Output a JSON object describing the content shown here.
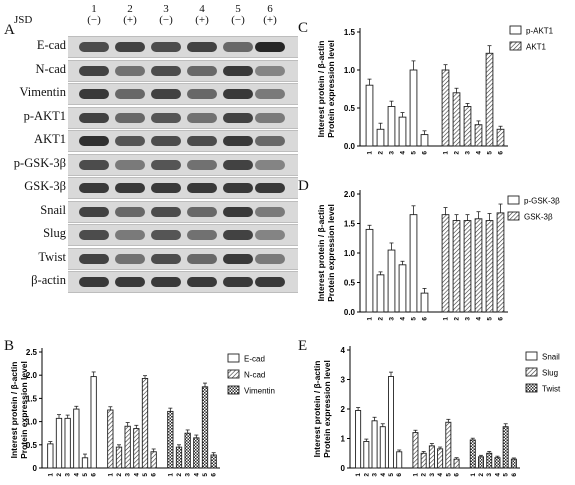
{
  "panels": {
    "A": "A",
    "B": "B",
    "C": "C",
    "D": "D",
    "E": "E"
  },
  "blot": {
    "header_label": "JSD",
    "lanes": [
      {
        "num": "1",
        "sign": "(−)"
      },
      {
        "num": "2",
        "sign": "(+)"
      },
      {
        "num": "3",
        "sign": "(−)"
      },
      {
        "num": "4",
        "sign": "(+)"
      },
      {
        "num": "5",
        "sign": "(−)"
      },
      {
        "num": "6",
        "sign": "(+)"
      }
    ],
    "rows": [
      {
        "label": "E-cad",
        "intensity": [
          0.75,
          0.8,
          0.75,
          0.8,
          0.6,
          0.95
        ]
      },
      {
        "label": "N-cad",
        "intensity": [
          0.8,
          0.55,
          0.75,
          0.6,
          0.85,
          0.45
        ]
      },
      {
        "label": "Vimentin",
        "intensity": [
          0.85,
          0.6,
          0.8,
          0.6,
          0.85,
          0.5
        ]
      },
      {
        "label": "p-AKT1",
        "intensity": [
          0.8,
          0.6,
          0.7,
          0.55,
          0.8,
          0.5
        ]
      },
      {
        "label": "AKT1",
        "intensity": [
          0.9,
          0.7,
          0.75,
          0.75,
          0.85,
          0.6
        ]
      },
      {
        "label": "p-GSK-3β",
        "intensity": [
          0.75,
          0.5,
          0.7,
          0.55,
          0.8,
          0.45
        ]
      },
      {
        "label": "GSK-3β",
        "intensity": [
          0.85,
          0.85,
          0.85,
          0.85,
          0.85,
          0.85
        ]
      },
      {
        "label": "Snail",
        "intensity": [
          0.8,
          0.6,
          0.75,
          0.6,
          0.85,
          0.5
        ]
      },
      {
        "label": "Slug",
        "intensity": [
          0.75,
          0.5,
          0.7,
          0.55,
          0.8,
          0.45
        ]
      },
      {
        "label": "Twist",
        "intensity": [
          0.8,
          0.55,
          0.75,
          0.6,
          0.85,
          0.5
        ]
      },
      {
        "label": "β-actin",
        "intensity": [
          0.85,
          0.85,
          0.85,
          0.85,
          0.85,
          0.85
        ]
      }
    ]
  },
  "chart_data": [
    {
      "panel": "B",
      "type": "bar",
      "ylabel": "Interest protein / β-actin\nProtein expression level",
      "ylim": [
        0,
        2.5
      ],
      "yticks": [
        0,
        0.5,
        1,
        1.5,
        2,
        2.5
      ],
      "ytick_labels": [
        "0",
        "0.5",
        "1.0",
        "1.5",
        "2.0",
        "2.5"
      ],
      "categories": [
        "1",
        "2",
        "3",
        "4",
        "5",
        "6"
      ],
      "legend_position": "right",
      "series": [
        {
          "name": "E-cad",
          "values": [
            0.52,
            1.07,
            1.07,
            1.27,
            0.22,
            1.97
          ],
          "errors": [
            0.05,
            0.08,
            0.07,
            0.06,
            0.08,
            0.1
          ]
        },
        {
          "name": "N-cad",
          "values": [
            1.25,
            0.45,
            0.9,
            0.85,
            1.93,
            0.35
          ],
          "errors": [
            0.07,
            0.05,
            0.08,
            0.07,
            0.06,
            0.06
          ]
        },
        {
          "name": "Vimentin",
          "values": [
            1.22,
            0.45,
            0.75,
            0.65,
            1.75,
            0.28
          ],
          "errors": [
            0.07,
            0.05,
            0.07,
            0.06,
            0.08,
            0.05
          ]
        }
      ]
    },
    {
      "panel": "C",
      "type": "bar",
      "ylabel": "Interest protein / β-actin\nProtein expression level",
      "ylim": [
        0,
        1.5
      ],
      "yticks": [
        0,
        0.5,
        1,
        1.5
      ],
      "ytick_labels": [
        "0.0",
        "0.5",
        "1.0",
        "1.5"
      ],
      "categories": [
        "1",
        "2",
        "3",
        "4",
        "5",
        "6"
      ],
      "legend_position": "top-right",
      "series": [
        {
          "name": "p-AKT1",
          "values": [
            0.8,
            0.22,
            0.52,
            0.38,
            1.0,
            0.15
          ],
          "errors": [
            0.08,
            0.08,
            0.07,
            0.06,
            0.12,
            0.05
          ]
        },
        {
          "name": "AKT1",
          "values": [
            1.0,
            0.7,
            0.52,
            0.28,
            1.22,
            0.22
          ],
          "errors": [
            0.07,
            0.06,
            0.04,
            0.05,
            0.1,
            0.04
          ]
        }
      ]
    },
    {
      "panel": "D",
      "type": "bar",
      "ylabel": "Interest protein / β-actin\nProtein expression level",
      "ylim": [
        0,
        2.0
      ],
      "yticks": [
        0,
        0.5,
        1,
        1.5,
        2
      ],
      "ytick_labels": [
        "0.0",
        "0.5",
        "1.0",
        "1.5",
        "2.0"
      ],
      "categories": [
        "1",
        "2",
        "3",
        "4",
        "5",
        "6"
      ],
      "legend_position": "top-right",
      "series": [
        {
          "name": "p-GSK-3β",
          "values": [
            1.4,
            0.63,
            1.05,
            0.8,
            1.65,
            0.32
          ],
          "errors": [
            0.07,
            0.05,
            0.12,
            0.06,
            0.15,
            0.08
          ]
        },
        {
          "name": "GSK-3β",
          "values": [
            1.65,
            1.55,
            1.55,
            1.58,
            1.55,
            1.68
          ],
          "errors": [
            0.12,
            0.1,
            0.1,
            0.12,
            0.12,
            0.15
          ]
        }
      ]
    },
    {
      "panel": "E",
      "type": "bar",
      "ylabel": "Interest protein / β-actin\nProtein expression level",
      "ylim": [
        0,
        4
      ],
      "yticks": [
        0,
        1,
        2,
        3,
        4
      ],
      "ytick_labels": [
        "0",
        "1",
        "2",
        "3",
        "4"
      ],
      "categories": [
        "1",
        "2",
        "3",
        "4",
        "5",
        "6"
      ],
      "legend_position": "right",
      "series": [
        {
          "name": "Snail",
          "values": [
            1.95,
            0.9,
            1.6,
            1.4,
            3.1,
            0.55
          ],
          "errors": [
            0.1,
            0.08,
            0.12,
            0.1,
            0.15,
            0.06
          ]
        },
        {
          "name": "Slug",
          "values": [
            1.2,
            0.5,
            0.75,
            0.65,
            1.55,
            0.3
          ],
          "errors": [
            0.08,
            0.06,
            0.08,
            0.06,
            0.1,
            0.05
          ]
        },
        {
          "name": "Twist",
          "values": [
            0.95,
            0.38,
            0.5,
            0.35,
            1.4,
            0.3
          ],
          "errors": [
            0.06,
            0.05,
            0.06,
            0.05,
            0.1,
            0.04
          ]
        }
      ]
    }
  ],
  "colors": {
    "bar_fill": "#ffffff",
    "bar_stroke": "#222222",
    "blot_band": "#1c1c1c"
  }
}
